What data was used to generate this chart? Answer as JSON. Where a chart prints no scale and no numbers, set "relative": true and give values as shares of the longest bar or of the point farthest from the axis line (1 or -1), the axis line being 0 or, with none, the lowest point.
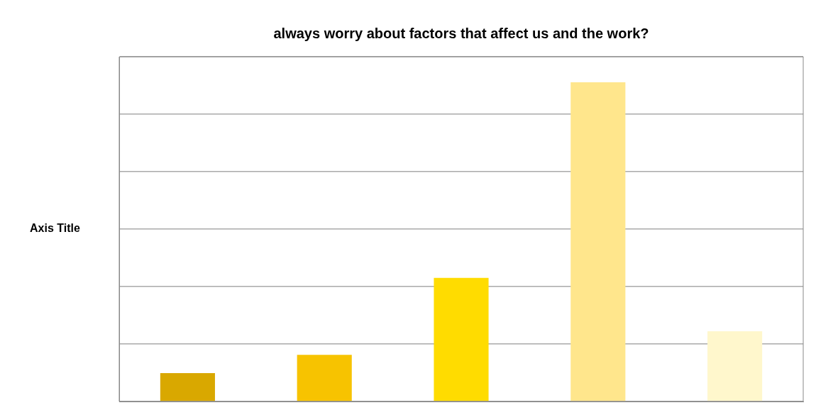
{
  "chart_data": {
    "type": "bar",
    "title": "always worry about factors that affect us and the work?",
    "ylabel": "Axis Title",
    "categories": [
      null,
      null,
      null,
      null,
      null
    ],
    "values": [
      0.089,
      0.146,
      0.387,
      1,
      0.22
    ],
    "colors": [
      "#d9a800",
      "#f7c300",
      "#ffdc00",
      "#ffe68c",
      "#fff7cc"
    ],
    "relative": true,
    "grid": "y",
    "legend": false
  }
}
